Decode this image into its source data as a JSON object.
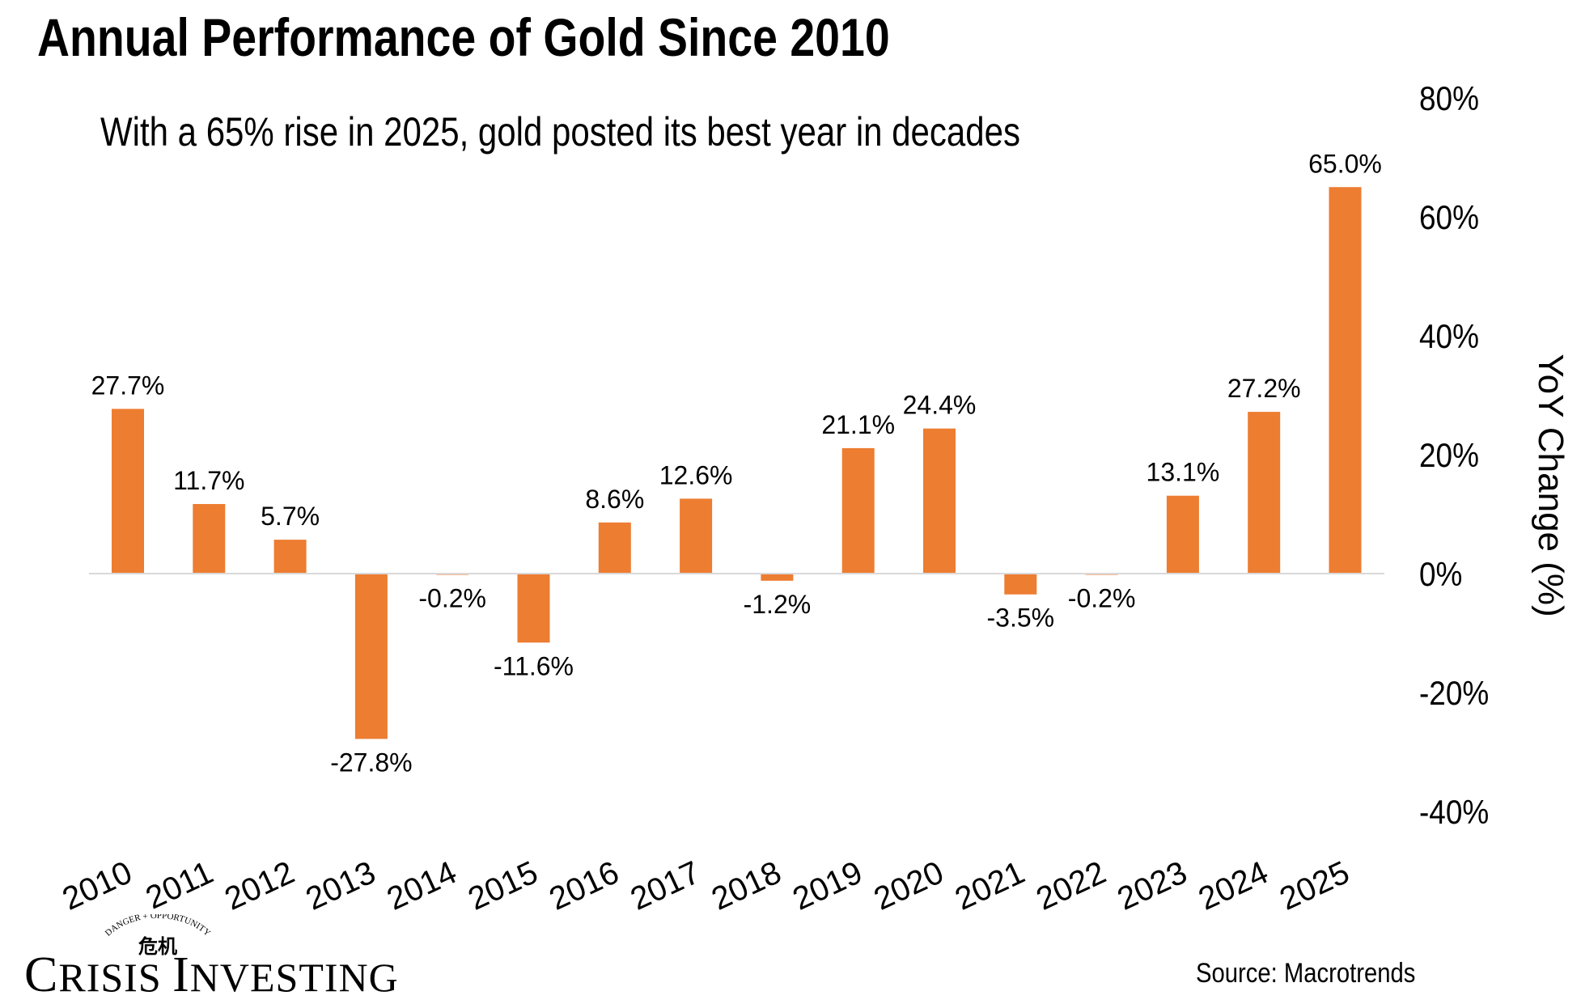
{
  "header": {
    "title": "Annual Performance of Gold Since 2010",
    "subtitle": "With a 65% rise in 2025, gold posted its best year in decades"
  },
  "footer": {
    "source": "Source: Macrotrends",
    "logo_text": "CRISIS INVESTING",
    "logo_tagline": "DANGER + OPPORTUNITY",
    "logo_glyphs": "危机"
  },
  "colors": {
    "bar": "#ED7D31",
    "zero_line": "#D9D9D9",
    "text": "#000000"
  },
  "chart_data": {
    "type": "bar",
    "title": "Annual Performance of Gold Since 2010",
    "xlabel": "",
    "ylabel": "YoY Change (%)",
    "ylim": [
      -40,
      80
    ],
    "yticks": [
      80,
      60,
      40,
      20,
      0,
      -20,
      -40
    ],
    "ytick_labels": [
      "80%",
      "60%",
      "40%",
      "20%",
      "0%",
      "-20%",
      "-40%"
    ],
    "y_axis_side": "right",
    "grid": false,
    "categories": [
      "2010",
      "2011",
      "2012",
      "2013",
      "2014",
      "2015",
      "2016",
      "2017",
      "2018",
      "2019",
      "2020",
      "2021",
      "2022",
      "2023",
      "2024",
      "2025"
    ],
    "values": [
      27.7,
      11.7,
      5.7,
      -27.8,
      -0.2,
      -11.6,
      8.6,
      12.6,
      -1.2,
      21.1,
      24.4,
      -3.5,
      -0.2,
      13.1,
      27.2,
      65.0
    ],
    "data_labels": [
      "27.7%",
      "11.7%",
      "5.7%",
      "-27.8%",
      "-0.2%",
      "-11.6%",
      "8.6%",
      "12.6%",
      "-1.2%",
      "21.1%",
      "24.4%",
      "-3.5%",
      "-0.2%",
      "13.1%",
      "27.2%",
      "65.0%"
    ]
  }
}
